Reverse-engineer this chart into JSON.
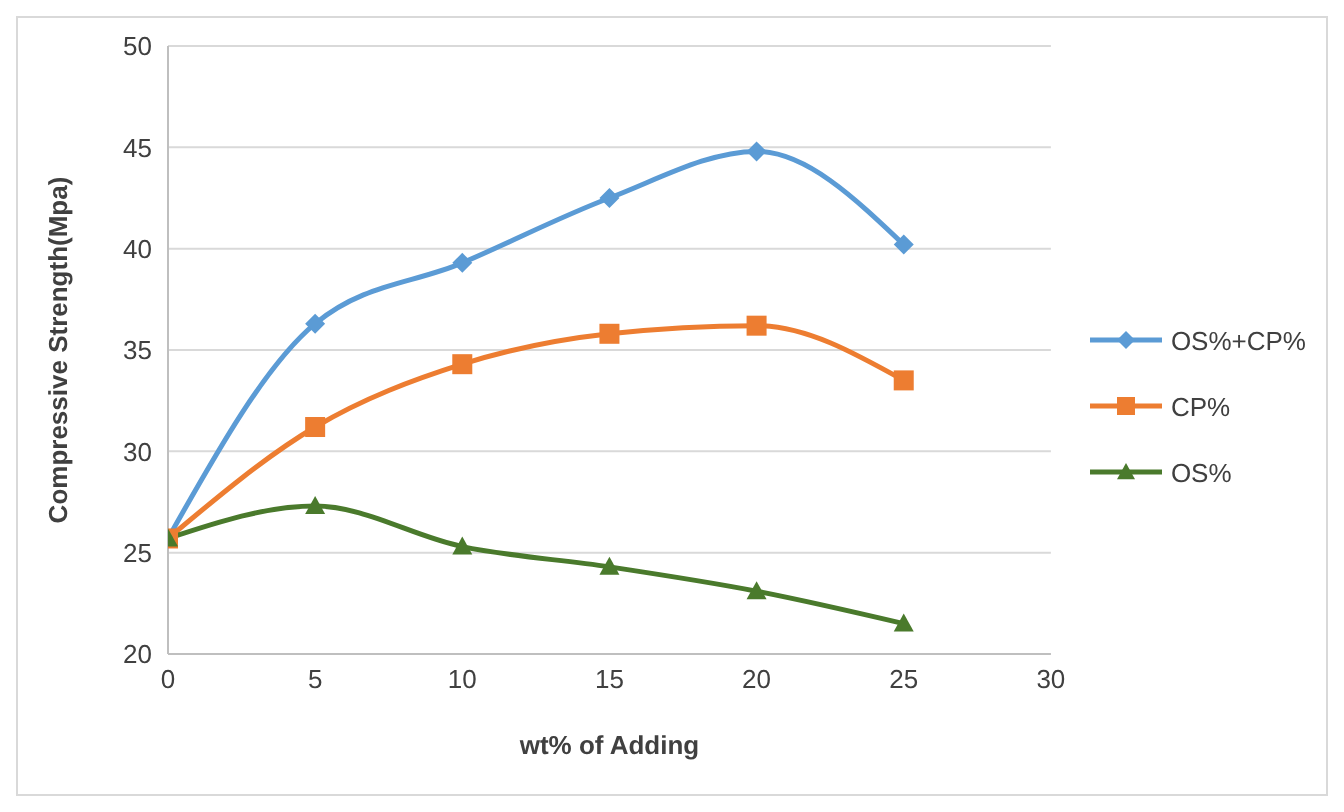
{
  "chart_data": {
    "type": "line",
    "xlabel": "wt% of Adding",
    "ylabel": "Compressive Strength(Mpa)",
    "x": [
      0,
      5,
      10,
      15,
      20,
      25
    ],
    "xlim": [
      0,
      30
    ],
    "xticks": [
      0,
      5,
      10,
      15,
      20,
      25,
      30
    ],
    "ylim": [
      20,
      50
    ],
    "yticks": [
      20,
      25,
      30,
      35,
      40,
      45,
      50
    ],
    "grid": "y",
    "legend": "right",
    "series": [
      {
        "name": "OS%+CP%",
        "color": "#5b9bd5",
        "marker": "diamond",
        "values": [
          25.7,
          36.3,
          39.3,
          42.5,
          44.8,
          40.2
        ]
      },
      {
        "name": "CP%",
        "color": "#ed7d31",
        "marker": "square",
        "values": [
          25.7,
          31.2,
          34.3,
          35.8,
          36.2,
          33.5
        ]
      },
      {
        "name": "OS%",
        "color": "#4a7a2c",
        "marker": "triangle",
        "values": [
          25.7,
          27.3,
          25.3,
          24.3,
          23.1,
          21.5
        ]
      }
    ]
  }
}
